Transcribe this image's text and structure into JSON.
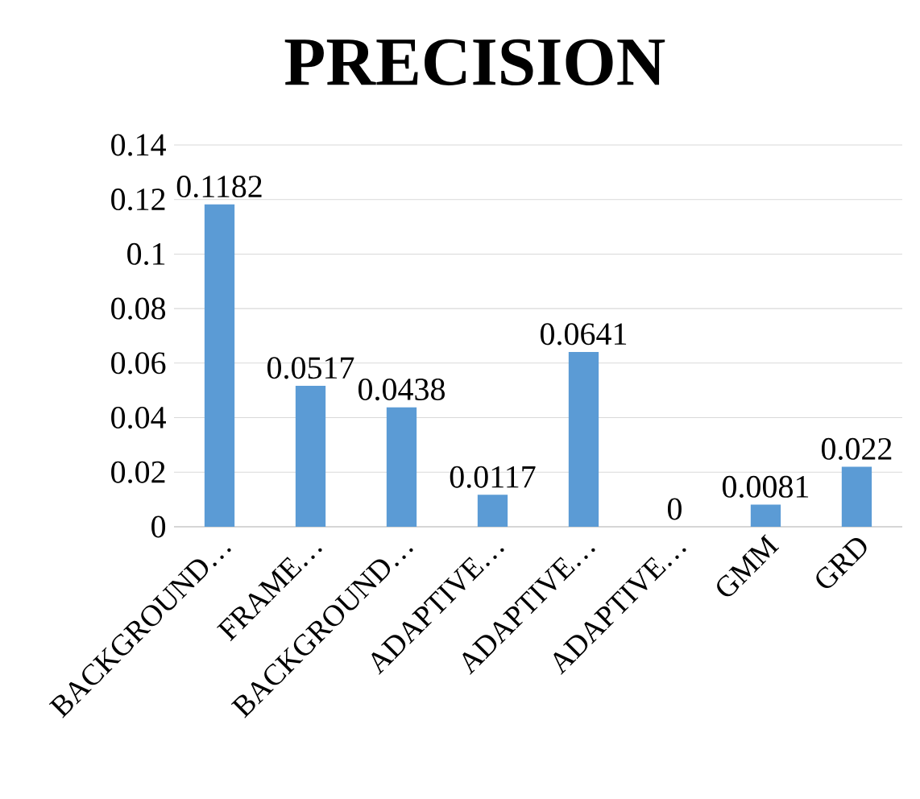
{
  "chart_data": {
    "type": "bar",
    "title": "PRECISION",
    "categories": [
      "BACKGROUND…",
      "FRAME…",
      "BACKGROUND…",
      "ADAPTIVE…",
      "ADAPTIVE…",
      "ADAPTIVE…",
      "GMM",
      "GRD"
    ],
    "values": [
      0.1182,
      0.0517,
      0.0438,
      0.0117,
      0.0641,
      0,
      0.0081,
      0.022
    ],
    "color": "#5b9bd5",
    "ylim": [
      0,
      0.14
    ],
    "yticks": [
      0,
      0.02,
      0.04,
      0.06,
      0.08,
      0.1,
      0.12,
      0.14
    ],
    "grid": "y",
    "data_labels": true
  }
}
